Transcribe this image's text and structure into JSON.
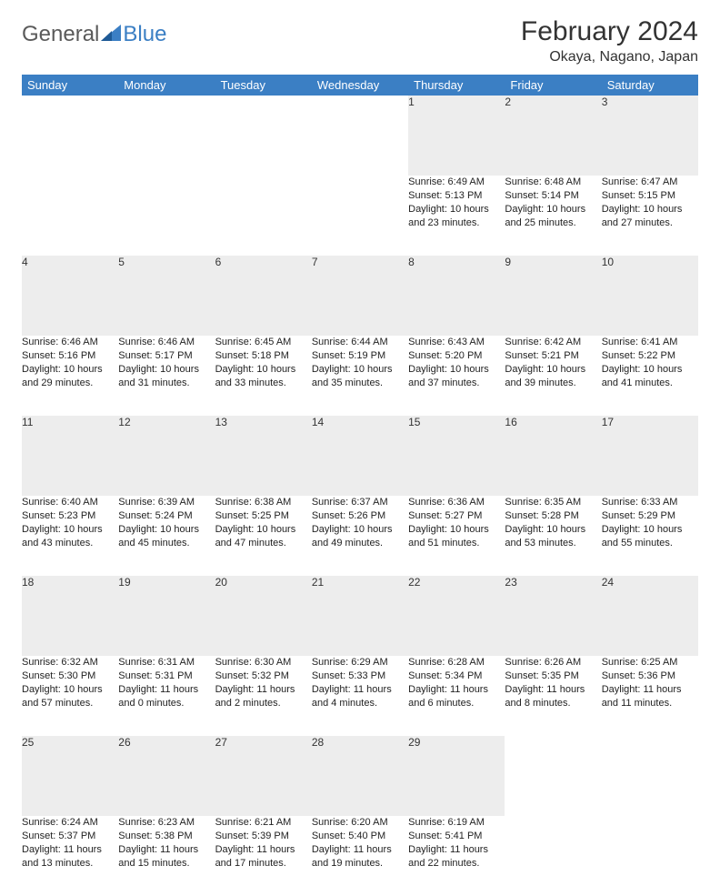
{
  "logo": {
    "general": "General",
    "blue": "Blue"
  },
  "title": "February 2024",
  "location": "Okaya, Nagano, Japan",
  "header_bg": "#3b7fc4",
  "days_of_week": [
    "Sunday",
    "Monday",
    "Tuesday",
    "Wednesday",
    "Thursday",
    "Friday",
    "Saturday"
  ],
  "weeks": [
    [
      null,
      null,
      null,
      null,
      {
        "n": "1",
        "sr": "6:49 AM",
        "ss": "5:13 PM",
        "dh": "10",
        "dm": "23"
      },
      {
        "n": "2",
        "sr": "6:48 AM",
        "ss": "5:14 PM",
        "dh": "10",
        "dm": "25"
      },
      {
        "n": "3",
        "sr": "6:47 AM",
        "ss": "5:15 PM",
        "dh": "10",
        "dm": "27"
      }
    ],
    [
      {
        "n": "4",
        "sr": "6:46 AM",
        "ss": "5:16 PM",
        "dh": "10",
        "dm": "29"
      },
      {
        "n": "5",
        "sr": "6:46 AM",
        "ss": "5:17 PM",
        "dh": "10",
        "dm": "31"
      },
      {
        "n": "6",
        "sr": "6:45 AM",
        "ss": "5:18 PM",
        "dh": "10",
        "dm": "33"
      },
      {
        "n": "7",
        "sr": "6:44 AM",
        "ss": "5:19 PM",
        "dh": "10",
        "dm": "35"
      },
      {
        "n": "8",
        "sr": "6:43 AM",
        "ss": "5:20 PM",
        "dh": "10",
        "dm": "37"
      },
      {
        "n": "9",
        "sr": "6:42 AM",
        "ss": "5:21 PM",
        "dh": "10",
        "dm": "39"
      },
      {
        "n": "10",
        "sr": "6:41 AM",
        "ss": "5:22 PM",
        "dh": "10",
        "dm": "41"
      }
    ],
    [
      {
        "n": "11",
        "sr": "6:40 AM",
        "ss": "5:23 PM",
        "dh": "10",
        "dm": "43"
      },
      {
        "n": "12",
        "sr": "6:39 AM",
        "ss": "5:24 PM",
        "dh": "10",
        "dm": "45"
      },
      {
        "n": "13",
        "sr": "6:38 AM",
        "ss": "5:25 PM",
        "dh": "10",
        "dm": "47"
      },
      {
        "n": "14",
        "sr": "6:37 AM",
        "ss": "5:26 PM",
        "dh": "10",
        "dm": "49"
      },
      {
        "n": "15",
        "sr": "6:36 AM",
        "ss": "5:27 PM",
        "dh": "10",
        "dm": "51"
      },
      {
        "n": "16",
        "sr": "6:35 AM",
        "ss": "5:28 PM",
        "dh": "10",
        "dm": "53"
      },
      {
        "n": "17",
        "sr": "6:33 AM",
        "ss": "5:29 PM",
        "dh": "10",
        "dm": "55"
      }
    ],
    [
      {
        "n": "18",
        "sr": "6:32 AM",
        "ss": "5:30 PM",
        "dh": "10",
        "dm": "57"
      },
      {
        "n": "19",
        "sr": "6:31 AM",
        "ss": "5:31 PM",
        "dh": "11",
        "dm": "0"
      },
      {
        "n": "20",
        "sr": "6:30 AM",
        "ss": "5:32 PM",
        "dh": "11",
        "dm": "2"
      },
      {
        "n": "21",
        "sr": "6:29 AM",
        "ss": "5:33 PM",
        "dh": "11",
        "dm": "4"
      },
      {
        "n": "22",
        "sr": "6:28 AM",
        "ss": "5:34 PM",
        "dh": "11",
        "dm": "6"
      },
      {
        "n": "23",
        "sr": "6:26 AM",
        "ss": "5:35 PM",
        "dh": "11",
        "dm": "8"
      },
      {
        "n": "24",
        "sr": "6:25 AM",
        "ss": "5:36 PM",
        "dh": "11",
        "dm": "11"
      }
    ],
    [
      {
        "n": "25",
        "sr": "6:24 AM",
        "ss": "5:37 PM",
        "dh": "11",
        "dm": "13"
      },
      {
        "n": "26",
        "sr": "6:23 AM",
        "ss": "5:38 PM",
        "dh": "11",
        "dm": "15"
      },
      {
        "n": "27",
        "sr": "6:21 AM",
        "ss": "5:39 PM",
        "dh": "11",
        "dm": "17"
      },
      {
        "n": "28",
        "sr": "6:20 AM",
        "ss": "5:40 PM",
        "dh": "11",
        "dm": "19"
      },
      {
        "n": "29",
        "sr": "6:19 AM",
        "ss": "5:41 PM",
        "dh": "11",
        "dm": "22"
      },
      null,
      null
    ]
  ],
  "labels": {
    "sunrise": "Sunrise:",
    "sunset": "Sunset:",
    "daylight": "Daylight:",
    "hours": "hours",
    "and": "and",
    "minutes": "minutes."
  }
}
